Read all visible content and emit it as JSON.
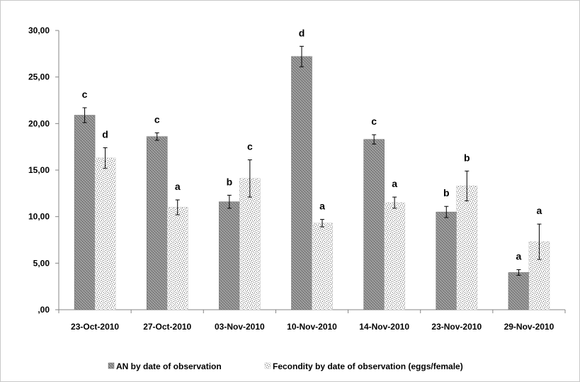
{
  "chart_data": {
    "type": "bar",
    "categories": [
      "23-Oct-2010",
      "27-Oct-2010",
      "03-Nov-2010",
      "10-Nov-2010",
      "14-Nov-2010",
      "23-Nov-2010",
      "29-Nov-2010"
    ],
    "series": [
      {
        "name": "AN by date of observation",
        "values": [
          20.9,
          18.6,
          11.6,
          27.2,
          18.3,
          10.5,
          4.0
        ],
        "error": [
          0.8,
          0.4,
          0.7,
          1.1,
          0.5,
          0.6,
          0.3
        ],
        "significance": [
          "c",
          "c",
          "b",
          "d",
          "c",
          "b",
          "a"
        ],
        "pattern": "dense-crosshatch"
      },
      {
        "name": "Fecondity by date of observation (eggs/female)",
        "values": [
          16.3,
          11.0,
          14.1,
          9.3,
          11.5,
          13.3,
          7.3
        ],
        "error": [
          1.1,
          0.8,
          2.0,
          0.4,
          0.6,
          1.6,
          1.9
        ],
        "significance": [
          "d",
          "a",
          "c",
          "a",
          "a",
          "b",
          "a"
        ],
        "pattern": "sparse-dots"
      }
    ],
    "yticks": [
      ",00",
      "5,00",
      "10,00",
      "15,00",
      "20,00",
      "25,00",
      "30,00"
    ],
    "ylim": [
      0,
      30
    ],
    "title": "",
    "xlabel": "",
    "ylabel": "",
    "grid": false,
    "legend_position": "bottom"
  }
}
